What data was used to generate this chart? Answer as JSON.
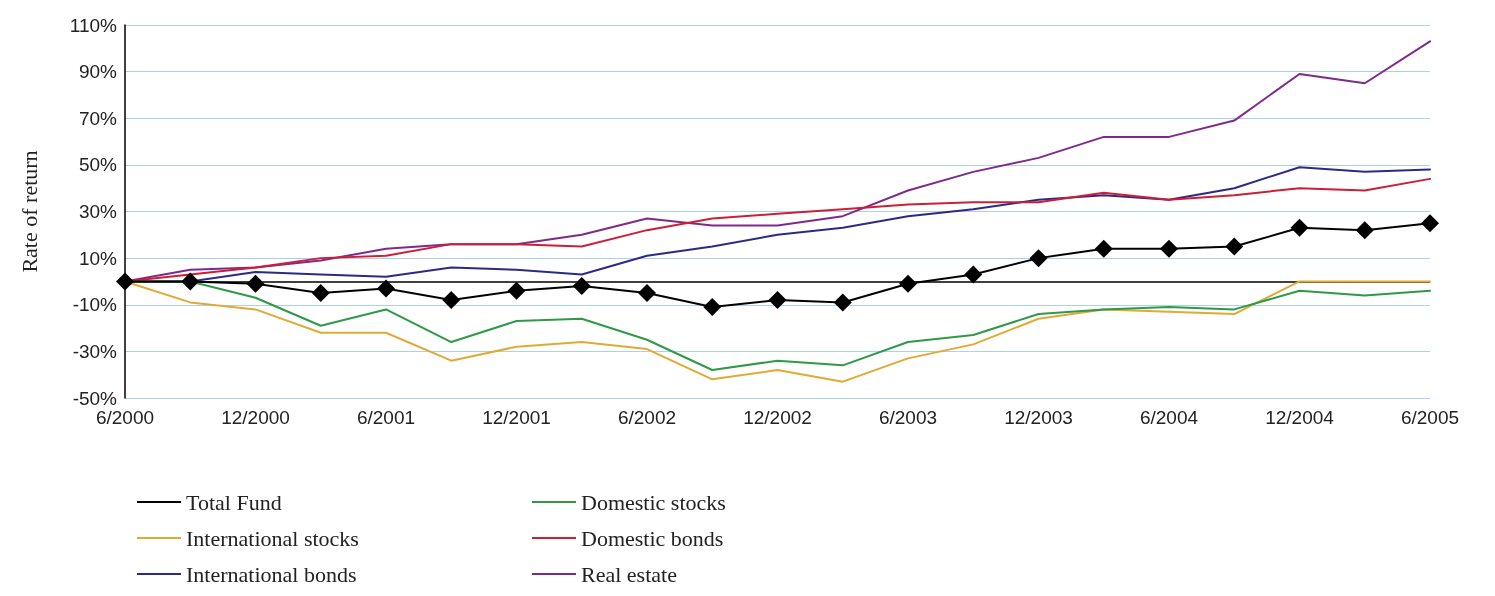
{
  "chart_data": {
    "type": "line",
    "ylabel": "Rate of return",
    "categories": [
      "6/2000",
      null,
      "12/2000",
      null,
      "6/2001",
      null,
      "12/2001",
      null,
      "6/2002",
      null,
      "12/2002",
      null,
      "6/2003",
      null,
      "12/2003",
      null,
      "6/2004",
      null,
      "12/2004",
      null,
      "6/2005"
    ],
    "series": [
      {
        "name": "Total Fund",
        "color": "#000000",
        "marker": "diamond",
        "values": [
          0,
          0,
          -1,
          -5,
          -3,
          -8,
          -4,
          -2,
          -5,
          -11,
          -8,
          -9,
          -1,
          3,
          10,
          14,
          14,
          15,
          23,
          22,
          25
        ]
      },
      {
        "name": "Domestic stocks",
        "color": "#2e9a47",
        "marker": "none",
        "values": [
          0,
          0,
          -7,
          -19,
          -12,
          -26,
          -17,
          -16,
          -25,
          -38,
          -34,
          -36,
          -26,
          -23,
          -14,
          -12,
          -11,
          -12,
          -4,
          -6,
          -4
        ]
      },
      {
        "name": "International stocks",
        "color": "#e0aa35",
        "marker": "none",
        "values": [
          0,
          -9,
          -12,
          -22,
          -22,
          -34,
          -28,
          -26,
          -29,
          -42,
          -38,
          -43,
          -33,
          -27,
          -16,
          -12,
          -13,
          -14,
          0,
          0,
          0
        ]
      },
      {
        "name": "Domestic bonds",
        "color": "#cc1f36",
        "marker": "none",
        "values": [
          0,
          3,
          6,
          10,
          11,
          16,
          16,
          15,
          22,
          27,
          29,
          31,
          33,
          34,
          34,
          38,
          35,
          37,
          40,
          39,
          44
        ]
      },
      {
        "name": "International bonds",
        "color": "#2d2a86",
        "marker": "none",
        "values": [
          0,
          0,
          4,
          3,
          2,
          6,
          5,
          3,
          11,
          15,
          20,
          23,
          28,
          31,
          35,
          37,
          35,
          40,
          49,
          47,
          48
        ]
      },
      {
        "name": "Real estate",
        "color": "#7e2a8c",
        "marker": "none",
        "values": [
          0,
          5,
          6,
          9,
          14,
          16,
          16,
          20,
          27,
          24,
          24,
          28,
          39,
          47,
          53,
          62,
          62,
          69,
          89,
          85,
          103
        ]
      }
    ],
    "ylim": [
      -50,
      110
    ],
    "yticks": [
      {
        "value": -50,
        "label": "-50%"
      },
      {
        "value": -30,
        "label": "-30%"
      },
      {
        "value": -10,
        "label": "-10%"
      },
      {
        "value": 10,
        "label": "10%"
      },
      {
        "value": 30,
        "label": "30%"
      },
      {
        "value": 50,
        "label": "50%"
      },
      {
        "value": 70,
        "label": "70%"
      },
      {
        "value": 90,
        "label": "90%"
      },
      {
        "value": 110,
        "label": "110%"
      }
    ],
    "ref_lines": [
      {
        "axis": "y",
        "value": 0,
        "color": "#000000"
      }
    ],
    "grid": "y",
    "legend": "bottom left",
    "line_style": "solid"
  }
}
